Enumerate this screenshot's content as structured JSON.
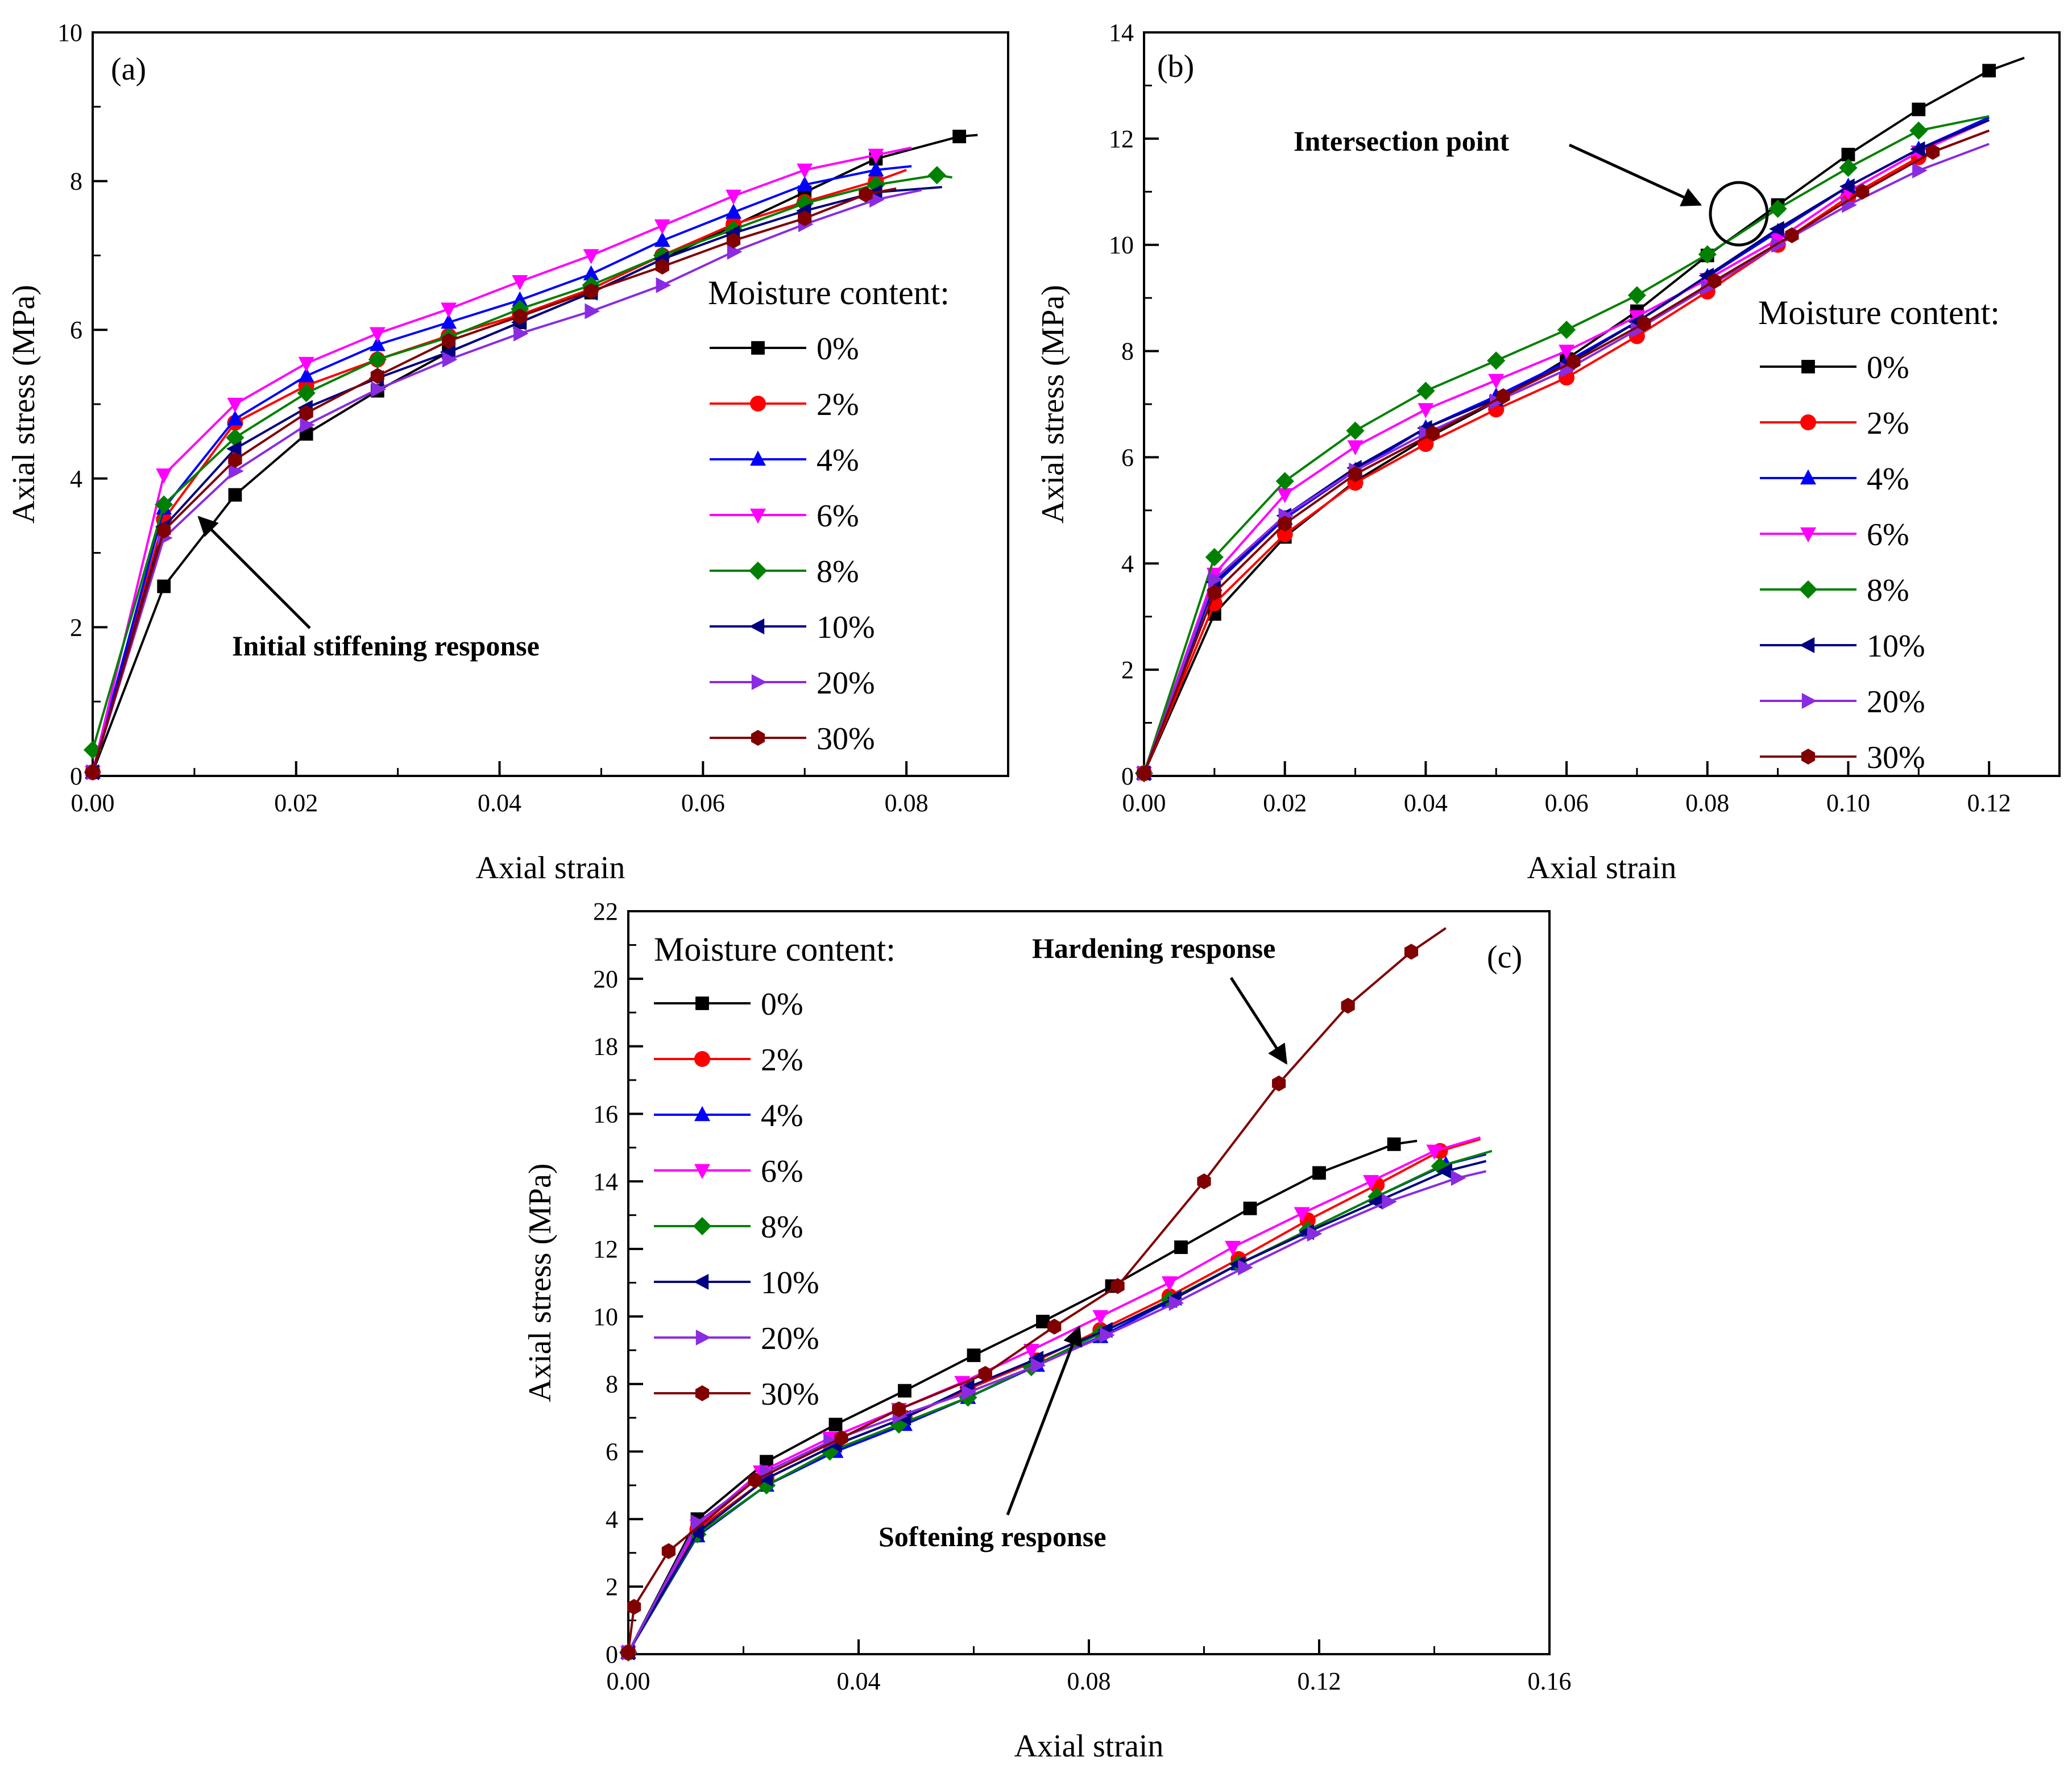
{
  "figure": {
    "legend_title": "Moisture content:",
    "series_names": [
      "0%",
      "2%",
      "4%",
      "6%",
      "8%",
      "10%",
      "20%",
      "30%"
    ],
    "series_colors": [
      "#000000",
      "#ff0000",
      "#0000ff",
      "#ff00ff",
      "#008000",
      "#000080",
      "#8a2be2",
      "#800000"
    ],
    "series_markers": [
      "square",
      "circle",
      "triangle-up",
      "triangle-down",
      "diamond",
      "triangle-left",
      "triangle-right",
      "hexagon"
    ]
  },
  "chart_data": [
    {
      "type": "line",
      "panel": "(a)",
      "xlabel": "Axial strain",
      "ylabel": "Axial stress (MPa)",
      "xlim": [
        0,
        0.09
      ],
      "ylim": [
        0,
        10
      ],
      "xticks": [
        "0.00",
        "0.02",
        "0.04",
        "0.06",
        "0.08"
      ],
      "yticks": [
        "0",
        "2",
        "4",
        "6",
        "8",
        "10"
      ],
      "annotation": "Initial stiffening response",
      "series": [
        {
          "name": "0%",
          "x": [
            0,
            0.007,
            0.014,
            0.021,
            0.028,
            0.035,
            0.042,
            0.049,
            0.056,
            0.063,
            0.07,
            0.077,
            0.0852,
            0.087
          ],
          "y": [
            0.05,
            2.55,
            3.78,
            4.6,
            5.18,
            5.7,
            6.1,
            6.5,
            6.95,
            7.4,
            7.85,
            8.3,
            8.6,
            8.62
          ]
        },
        {
          "name": "2%",
          "x": [
            0,
            0.007,
            0.014,
            0.021,
            0.028,
            0.035,
            0.042,
            0.049,
            0.056,
            0.063,
            0.07,
            0.077,
            0.08
          ],
          "y": [
            0.05,
            3.45,
            4.75,
            5.25,
            5.6,
            5.92,
            6.2,
            6.55,
            7.0,
            7.42,
            7.72,
            8.0,
            8.15
          ]
        },
        {
          "name": "4%",
          "x": [
            0,
            0.007,
            0.014,
            0.021,
            0.028,
            0.035,
            0.042,
            0.049,
            0.056,
            0.063,
            0.07,
            0.077,
            0.0805
          ],
          "y": [
            0.05,
            3.6,
            4.8,
            5.38,
            5.8,
            6.1,
            6.4,
            6.75,
            7.2,
            7.58,
            7.95,
            8.15,
            8.2
          ]
        },
        {
          "name": "6%",
          "x": [
            0,
            0.007,
            0.014,
            0.021,
            0.028,
            0.035,
            0.042,
            0.049,
            0.056,
            0.063,
            0.07,
            0.077,
            0.0805
          ],
          "y": [
            0.05,
            4.05,
            5.0,
            5.55,
            5.95,
            6.28,
            6.65,
            7.0,
            7.4,
            7.8,
            8.15,
            8.35,
            8.45
          ]
        },
        {
          "name": "8%",
          "x": [
            0,
            0.007,
            0.014,
            0.021,
            0.028,
            0.035,
            0.042,
            0.049,
            0.056,
            0.063,
            0.07,
            0.077,
            0.083,
            0.0845
          ],
          "y": [
            0.35,
            3.65,
            4.55,
            5.15,
            5.6,
            5.9,
            6.28,
            6.6,
            7.0,
            7.35,
            7.7,
            7.95,
            8.08,
            8.05
          ]
        },
        {
          "name": "10%",
          "x": [
            0,
            0.007,
            0.014,
            0.021,
            0.028,
            0.035,
            0.042,
            0.049,
            0.056,
            0.063,
            0.07,
            0.077,
            0.0835
          ],
          "y": [
            0.05,
            3.35,
            4.4,
            4.95,
            5.35,
            5.7,
            6.1,
            6.5,
            6.95,
            7.3,
            7.6,
            7.85,
            7.92
          ]
        },
        {
          "name": "20%",
          "x": [
            0,
            0.007,
            0.014,
            0.021,
            0.028,
            0.035,
            0.042,
            0.049,
            0.056,
            0.063,
            0.07,
            0.077,
            0.0815
          ],
          "y": [
            0.05,
            3.2,
            4.1,
            4.72,
            5.2,
            5.6,
            5.95,
            6.25,
            6.6,
            7.05,
            7.42,
            7.75,
            7.88
          ]
        },
        {
          "name": "30%",
          "x": [
            0,
            0.007,
            0.014,
            0.021,
            0.028,
            0.035,
            0.042,
            0.049,
            0.056,
            0.063,
            0.07,
            0.076,
            0.079
          ],
          "y": [
            0.05,
            3.3,
            4.25,
            4.88,
            5.38,
            5.85,
            6.18,
            6.52,
            6.85,
            7.2,
            7.5,
            7.82,
            7.9
          ]
        }
      ]
    },
    {
      "type": "line",
      "panel": "(b)",
      "xlabel": "Axial strain",
      "ylabel": "Axial stress (MPa)",
      "xlim": [
        0,
        0.13
      ],
      "ylim": [
        0,
        14
      ],
      "xticks": [
        "0.00",
        "0.02",
        "0.04",
        "0.06",
        "0.08",
        "0.10",
        "0.12"
      ],
      "yticks": [
        "0",
        "2",
        "4",
        "6",
        "8",
        "10",
        "12",
        "14"
      ],
      "annotation": "Intersection point",
      "series": [
        {
          "name": "0%",
          "x": [
            0,
            0.01,
            0.02,
            0.03,
            0.04,
            0.05,
            0.06,
            0.07,
            0.08,
            0.09,
            0.1,
            0.11,
            0.12,
            0.125
          ],
          "y": [
            0.05,
            3.05,
            4.5,
            5.55,
            6.35,
            7.05,
            7.85,
            8.75,
            9.8,
            10.75,
            11.7,
            12.55,
            13.28,
            13.52
          ]
        },
        {
          "name": "2%",
          "x": [
            0,
            0.01,
            0.02,
            0.03,
            0.04,
            0.05,
            0.06,
            0.07,
            0.08,
            0.09,
            0.1,
            0.11,
            0.12
          ],
          "y": [
            0.05,
            3.25,
            4.55,
            5.52,
            6.25,
            6.9,
            7.5,
            8.28,
            9.12,
            10.0,
            10.9,
            11.65,
            12.15
          ]
        },
        {
          "name": "4%",
          "x": [
            0,
            0.01,
            0.02,
            0.03,
            0.04,
            0.05,
            0.06,
            0.07,
            0.08,
            0.09,
            0.1,
            0.11,
            0.12
          ],
          "y": [
            0.05,
            3.6,
            4.85,
            5.75,
            6.55,
            7.15,
            7.8,
            8.55,
            9.4,
            10.25,
            11.1,
            11.8,
            12.4
          ]
        },
        {
          "name": "6%",
          "x": [
            0,
            0.01,
            0.02,
            0.03,
            0.04,
            0.05,
            0.06,
            0.07,
            0.08,
            0.09,
            0.1,
            0.11,
            0.12
          ],
          "y": [
            0.05,
            3.8,
            5.3,
            6.2,
            6.9,
            7.45,
            8.0,
            8.65,
            9.35,
            10.1,
            11.0,
            11.75,
            12.35
          ]
        },
        {
          "name": "8%",
          "x": [
            0,
            0.01,
            0.02,
            0.03,
            0.04,
            0.05,
            0.06,
            0.07,
            0.08,
            0.09,
            0.1,
            0.11,
            0.12
          ],
          "y": [
            0.05,
            4.12,
            5.55,
            6.5,
            7.25,
            7.82,
            8.4,
            9.05,
            9.82,
            10.68,
            11.45,
            12.15,
            12.42
          ]
        },
        {
          "name": "10%",
          "x": [
            0,
            0.01,
            0.02,
            0.03,
            0.04,
            0.05,
            0.06,
            0.07,
            0.08,
            0.09,
            0.1,
            0.11,
            0.12
          ],
          "y": [
            0.05,
            3.65,
            4.9,
            5.8,
            6.55,
            7.1,
            7.75,
            8.55,
            9.42,
            10.3,
            11.1,
            11.8,
            12.35
          ]
        },
        {
          "name": "20%",
          "x": [
            0,
            0.01,
            0.02,
            0.03,
            0.04,
            0.05,
            0.06,
            0.07,
            0.08,
            0.09,
            0.1,
            0.11,
            0.12
          ],
          "y": [
            0.05,
            3.7,
            4.9,
            5.75,
            6.45,
            7.05,
            7.65,
            8.4,
            9.2,
            10.0,
            10.75,
            11.4,
            11.9
          ]
        },
        {
          "name": "30%",
          "x": [
            0,
            0.01,
            0.02,
            0.03,
            0.041,
            0.051,
            0.061,
            0.071,
            0.081,
            0.092,
            0.102,
            0.112,
            0.12
          ],
          "y": [
            0.05,
            3.45,
            4.75,
            5.68,
            6.45,
            7.15,
            7.8,
            8.52,
            9.32,
            10.18,
            11.0,
            11.75,
            12.15
          ]
        }
      ]
    },
    {
      "type": "line",
      "panel": "(c)",
      "xlabel": "Axial strain",
      "ylabel": "Axial stress (MPa)",
      "xlim": [
        0,
        0.16
      ],
      "ylim": [
        0,
        22
      ],
      "xticks": [
        "0.00",
        "0.04",
        "0.08",
        "0.12",
        "0.16"
      ],
      "yticks": [
        "0",
        "2",
        "4",
        "6",
        "8",
        "10",
        "12",
        "14",
        "16",
        "18",
        "20",
        "22"
      ],
      "annotations": [
        "Hardening response",
        "Softening response"
      ],
      "series": [
        {
          "name": "0%",
          "x": [
            0,
            0.012,
            0.024,
            0.036,
            0.048,
            0.06,
            0.072,
            0.084,
            0.096,
            0.108,
            0.12,
            0.133,
            0.137
          ],
          "y": [
            0.05,
            4.0,
            5.7,
            6.8,
            7.8,
            8.85,
            9.85,
            10.9,
            12.05,
            13.2,
            14.25,
            15.1,
            15.2
          ]
        },
        {
          "name": "2%",
          "x": [
            0,
            0.012,
            0.024,
            0.036,
            0.048,
            0.059,
            0.071,
            0.082,
            0.094,
            0.106,
            0.118,
            0.13,
            0.141,
            0.148
          ],
          "y": [
            0.05,
            3.7,
            5.2,
            6.2,
            7.0,
            7.85,
            8.7,
            9.6,
            10.6,
            11.7,
            12.85,
            13.9,
            14.9,
            15.25
          ]
        },
        {
          "name": "4%",
          "x": [
            0,
            0.012,
            0.024,
            0.036,
            0.048,
            0.059,
            0.071,
            0.082,
            0.094,
            0.106,
            0.118,
            0.13,
            0.142,
            0.149
          ],
          "y": [
            0.05,
            3.5,
            5.0,
            6.0,
            6.8,
            7.6,
            8.55,
            9.4,
            10.45,
            11.55,
            12.55,
            13.55,
            14.5,
            14.8
          ]
        },
        {
          "name": "6%",
          "x": [
            0,
            0.012,
            0.023,
            0.035,
            0.047,
            0.058,
            0.07,
            0.082,
            0.094,
            0.105,
            0.117,
            0.129,
            0.14,
            0.148
          ],
          "y": [
            0.05,
            3.8,
            5.4,
            6.4,
            7.25,
            8.05,
            9.0,
            10.0,
            11.0,
            12.05,
            13.05,
            14.0,
            14.9,
            15.3
          ]
        },
        {
          "name": "8%",
          "x": [
            0,
            0.012,
            0.024,
            0.035,
            0.047,
            0.059,
            0.07,
            0.082,
            0.094,
            0.106,
            0.118,
            0.13,
            0.141,
            0.15
          ],
          "y": [
            0.05,
            3.55,
            5.0,
            6.0,
            6.8,
            7.6,
            8.5,
            9.5,
            10.5,
            11.55,
            12.55,
            13.55,
            14.45,
            14.9
          ]
        },
        {
          "name": "10%",
          "x": [
            0,
            0.012,
            0.024,
            0.036,
            0.048,
            0.059,
            0.071,
            0.083,
            0.095,
            0.106,
            0.118,
            0.13,
            0.142,
            0.149
          ],
          "y": [
            0.05,
            3.6,
            5.2,
            6.2,
            7.0,
            7.9,
            8.75,
            9.6,
            10.55,
            11.55,
            12.5,
            13.4,
            14.3,
            14.6
          ]
        },
        {
          "name": "20%",
          "x": [
            0,
            0.012,
            0.024,
            0.035,
            0.047,
            0.059,
            0.071,
            0.083,
            0.095,
            0.107,
            0.119,
            0.132,
            0.144,
            0.149
          ],
          "y": [
            0.05,
            3.9,
            5.4,
            6.3,
            7.05,
            7.75,
            8.55,
            9.45,
            10.4,
            11.45,
            12.45,
            13.4,
            14.1,
            14.3
          ]
        },
        {
          "name": "30%",
          "x": [
            0,
            0.001,
            0.007,
            0.022,
            0.037,
            0.047,
            0.062,
            0.074,
            0.085,
            0.1,
            0.113,
            0.125,
            0.136,
            0.142
          ],
          "y": [
            0.05,
            1.4,
            3.05,
            5.15,
            6.4,
            7.25,
            8.3,
            9.7,
            10.9,
            14.0,
            16.9,
            19.2,
            20.8,
            21.5
          ]
        }
      ]
    }
  ]
}
